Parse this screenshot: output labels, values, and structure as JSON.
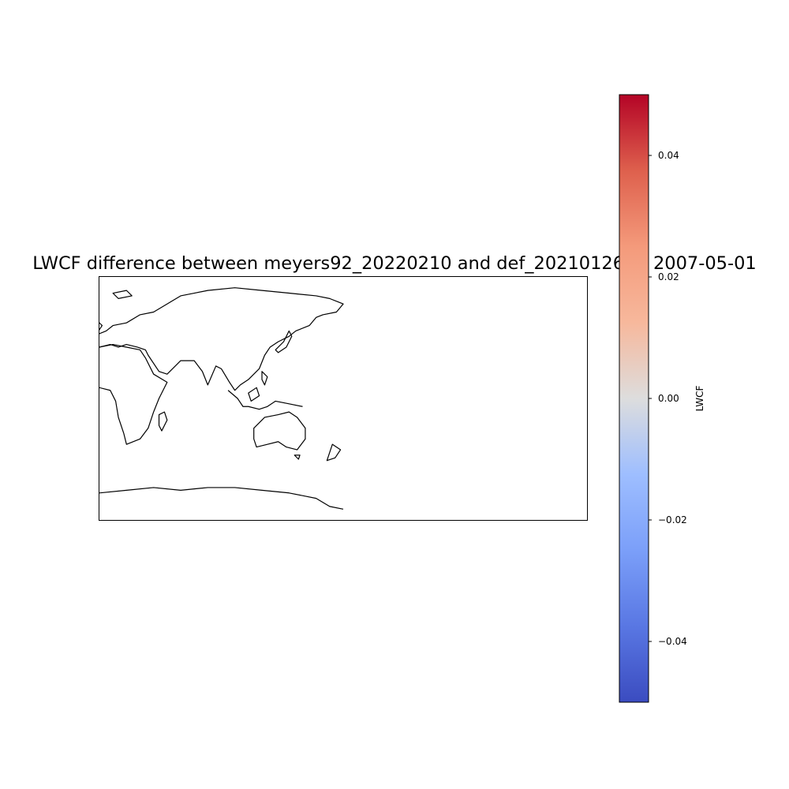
{
  "map": {
    "title": "LWCF difference between meyers92_20220210 and def_20210126 at 2007-05-01",
    "projection": "PlateCarree",
    "extent": [
      -180,
      180,
      -90,
      90
    ],
    "coastline_color": "#000000",
    "field_values_visible": "none"
  },
  "colorbar": {
    "label": "LWCF",
    "colormap": "coolwarm",
    "vmin": -0.05,
    "vmax": 0.05,
    "ticks": [
      {
        "value": 0.04,
        "label": "0.04"
      },
      {
        "value": 0.02,
        "label": "0.02"
      },
      {
        "value": 0.0,
        "label": "0.00"
      },
      {
        "value": -0.02,
        "label": "−0.02"
      },
      {
        "value": -0.04,
        "label": "−0.04"
      }
    ],
    "colors": {
      "low": "#3b4cc0",
      "mid": "#dddddd",
      "high": "#b40426"
    }
  }
}
